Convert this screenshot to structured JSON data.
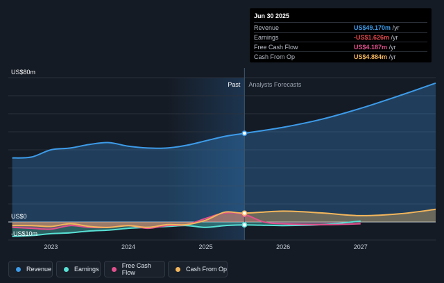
{
  "chart_data": {
    "type": "area",
    "y_labels": {
      "top": "US$80m",
      "zero": "US$0",
      "bottom": "-US$10m"
    },
    "ylim": [
      -10,
      80
    ],
    "xlim": [
      2022.45,
      2027.97
    ],
    "x_ticks": [
      {
        "value": 2023,
        "label": "2023"
      },
      {
        "value": 2024,
        "label": "2024"
      },
      {
        "value": 2025,
        "label": "2025"
      },
      {
        "value": 2026,
        "label": "2026"
      },
      {
        "value": 2027,
        "label": "2027"
      }
    ],
    "past_start": 2024.5,
    "divider": 2025.5,
    "past_label": "Past",
    "forecast_label": "Analysts Forecasts",
    "series": [
      {
        "name": "Revenue",
        "color": "#3d9be9",
        "x": [
          2022.5,
          2022.75,
          2023.0,
          2023.25,
          2023.5,
          2023.75,
          2024.0,
          2024.25,
          2024.5,
          2024.75,
          2025.0,
          2025.25,
          2025.5,
          2026.0,
          2026.5,
          2027.0,
          2027.5,
          2027.97
        ],
        "y": [
          35.5,
          36.0,
          40.0,
          41.0,
          43.0,
          44.0,
          42.0,
          41.0,
          41.0,
          42.5,
          45.0,
          47.5,
          49.17,
          52.5,
          57.0,
          63.0,
          70.0,
          77.0
        ]
      },
      {
        "name": "Earnings",
        "color": "#58e1d5",
        "x": [
          2022.5,
          2022.75,
          2023.0,
          2023.25,
          2023.5,
          2023.75,
          2024.0,
          2024.25,
          2024.5,
          2024.75,
          2025.0,
          2025.25,
          2025.5,
          2026.0,
          2026.5,
          2027.0
        ],
        "y": [
          -8.0,
          -7.5,
          -6.5,
          -6.0,
          -5.0,
          -4.5,
          -3.5,
          -3.0,
          -2.5,
          -2.0,
          -3.0,
          -2.0,
          -1.626,
          -2.0,
          -1.5,
          0.5
        ]
      },
      {
        "name": "Free Cash Flow",
        "color": "#e0508c",
        "x": [
          2022.5,
          2022.75,
          2023.0,
          2023.25,
          2023.5,
          2023.75,
          2024.0,
          2024.25,
          2024.5,
          2024.75,
          2025.0,
          2025.25,
          2025.5,
          2025.75,
          2026.0,
          2026.5,
          2027.0
        ],
        "y": [
          -3.0,
          -3.5,
          -4.0,
          -2.0,
          -3.0,
          -3.0,
          -2.0,
          -3.5,
          -2.0,
          -1.5,
          2.0,
          5.0,
          4.187,
          0.0,
          -1.0,
          -1.5,
          -1.0
        ]
      },
      {
        "name": "Cash From Op",
        "color": "#f3b65c",
        "x": [
          2022.5,
          2022.75,
          2023.0,
          2023.25,
          2023.5,
          2023.75,
          2024.0,
          2024.25,
          2024.5,
          2024.75,
          2025.0,
          2025.25,
          2025.5,
          2026.0,
          2026.5,
          2027.0,
          2027.5,
          2027.97
        ],
        "y": [
          -2.0,
          -2.0,
          -2.5,
          -1.0,
          -2.5,
          -3.0,
          -2.0,
          -3.0,
          -1.5,
          -1.5,
          1.0,
          5.5,
          4.884,
          6.0,
          5.0,
          3.5,
          4.5,
          7.0
        ]
      }
    ]
  },
  "tooltip": {
    "date": "Jun 30 2025",
    "rows": [
      {
        "label": "Revenue",
        "value": "US$49.170m",
        "unit": "/yr",
        "color": "#3d9be9"
      },
      {
        "label": "Earnings",
        "value": "-US$1.626m",
        "unit": "/yr",
        "color": "#e5484d"
      },
      {
        "label": "Free Cash Flow",
        "value": "US$4.187m",
        "unit": "/yr",
        "color": "#e0508c"
      },
      {
        "label": "Cash From Op",
        "value": "US$4.884m",
        "unit": "/yr",
        "color": "#f3b65c"
      }
    ]
  },
  "legend": [
    {
      "label": "Revenue",
      "color": "#3d9be9"
    },
    {
      "label": "Earnings",
      "color": "#58e1d5"
    },
    {
      "label": "Free Cash Flow",
      "color": "#e0508c"
    },
    {
      "label": "Cash From Op",
      "color": "#f3b65c"
    }
  ]
}
